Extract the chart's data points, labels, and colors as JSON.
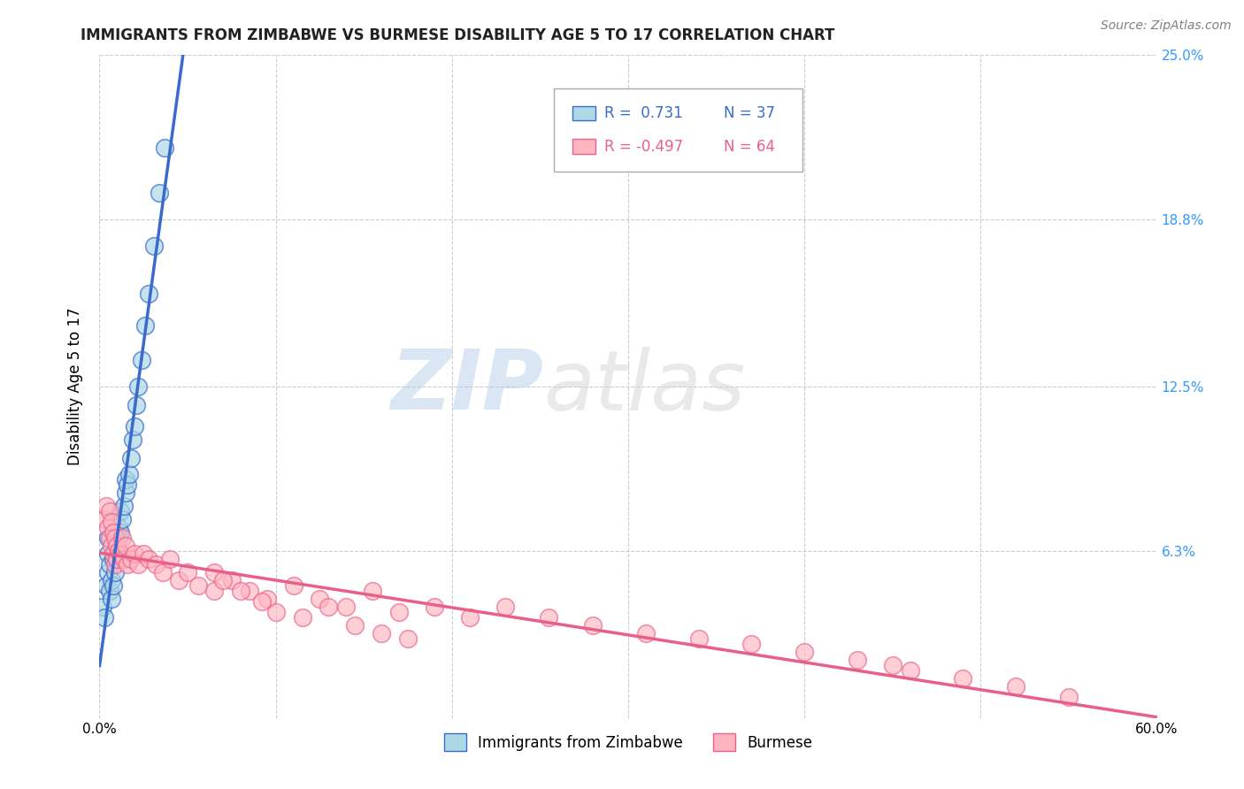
{
  "title": "IMMIGRANTS FROM ZIMBABWE VS BURMESE DISABILITY AGE 5 TO 17 CORRELATION CHART",
  "source": "Source: ZipAtlas.com",
  "ylabel": "Disability Age 5 to 17",
  "xlim": [
    0.0,
    0.6
  ],
  "ylim": [
    0.0,
    0.25
  ],
  "xticks": [
    0.0,
    0.1,
    0.2,
    0.3,
    0.4,
    0.5,
    0.6
  ],
  "xticklabels": [
    "0.0%",
    "",
    "",
    "",
    "",
    "",
    "60.0%"
  ],
  "ytick_positions": [
    0.0,
    0.063,
    0.125,
    0.188,
    0.25
  ],
  "yticklabels": [
    "",
    "6.3%",
    "12.5%",
    "18.8%",
    "25.0%"
  ],
  "color_blue": "#add8e6",
  "color_pink": "#ffb6c1",
  "line_color_blue": "#3a6bcc",
  "line_color_pink": "#e8608a",
  "background_color": "#ffffff",
  "grid_color": "#cccccc",
  "zimbabwe_x": [
    0.002,
    0.003,
    0.004,
    0.005,
    0.005,
    0.005,
    0.006,
    0.006,
    0.007,
    0.007,
    0.008,
    0.008,
    0.009,
    0.009,
    0.01,
    0.01,
    0.011,
    0.011,
    0.012,
    0.012,
    0.013,
    0.014,
    0.015,
    0.015,
    0.016,
    0.017,
    0.018,
    0.019,
    0.02,
    0.021,
    0.022,
    0.024,
    0.026,
    0.028,
    0.031,
    0.034,
    0.037
  ],
  "zimbabwe_y": [
    0.042,
    0.038,
    0.05,
    0.055,
    0.062,
    0.068,
    0.048,
    0.058,
    0.045,
    0.052,
    0.05,
    0.06,
    0.055,
    0.063,
    0.06,
    0.065,
    0.068,
    0.072,
    0.07,
    0.078,
    0.075,
    0.08,
    0.085,
    0.09,
    0.088,
    0.092,
    0.098,
    0.105,
    0.11,
    0.118,
    0.125,
    0.135,
    0.148,
    0.16,
    0.178,
    0.198,
    0.215
  ],
  "burmese_x": [
    0.003,
    0.004,
    0.005,
    0.006,
    0.006,
    0.007,
    0.007,
    0.008,
    0.008,
    0.009,
    0.009,
    0.01,
    0.01,
    0.011,
    0.012,
    0.013,
    0.014,
    0.015,
    0.016,
    0.018,
    0.02,
    0.022,
    0.025,
    0.028,
    0.032,
    0.036,
    0.04,
    0.045,
    0.05,
    0.056,
    0.065,
    0.075,
    0.085,
    0.095,
    0.11,
    0.125,
    0.14,
    0.155,
    0.17,
    0.19,
    0.21,
    0.23,
    0.255,
    0.28,
    0.31,
    0.34,
    0.37,
    0.4,
    0.43,
    0.46,
    0.49,
    0.52,
    0.55,
    0.065,
    0.07,
    0.08,
    0.092,
    0.1,
    0.115,
    0.13,
    0.145,
    0.16,
    0.175,
    0.45
  ],
  "burmese_y": [
    0.075,
    0.08,
    0.072,
    0.078,
    0.068,
    0.074,
    0.065,
    0.07,
    0.062,
    0.068,
    0.058,
    0.065,
    0.06,
    0.063,
    0.062,
    0.068,
    0.06,
    0.065,
    0.058,
    0.06,
    0.062,
    0.058,
    0.062,
    0.06,
    0.058,
    0.055,
    0.06,
    0.052,
    0.055,
    0.05,
    0.048,
    0.052,
    0.048,
    0.045,
    0.05,
    0.045,
    0.042,
    0.048,
    0.04,
    0.042,
    0.038,
    0.042,
    0.038,
    0.035,
    0.032,
    0.03,
    0.028,
    0.025,
    0.022,
    0.018,
    0.015,
    0.012,
    0.008,
    0.055,
    0.052,
    0.048,
    0.044,
    0.04,
    0.038,
    0.042,
    0.035,
    0.032,
    0.03,
    0.02
  ]
}
